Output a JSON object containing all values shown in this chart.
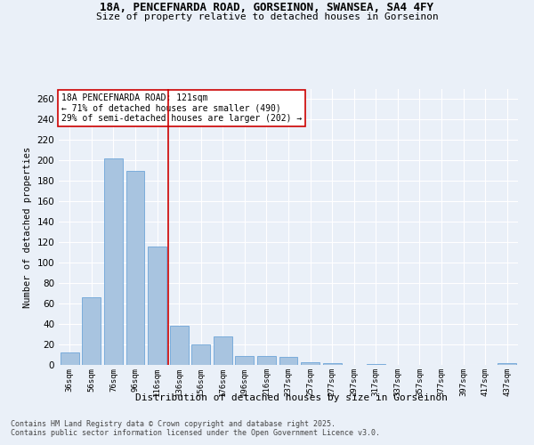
{
  "title_line1": "18A, PENCEFNARDA ROAD, GORSEINON, SWANSEA, SA4 4FY",
  "title_line2": "Size of property relative to detached houses in Gorseinon",
  "xlabel": "Distribution of detached houses by size in Gorseinon",
  "ylabel": "Number of detached properties",
  "categories": [
    "36sqm",
    "56sqm",
    "76sqm",
    "96sqm",
    "116sqm",
    "136sqm",
    "156sqm",
    "176sqm",
    "196sqm",
    "216sqm",
    "237sqm",
    "257sqm",
    "277sqm",
    "297sqm",
    "317sqm",
    "337sqm",
    "357sqm",
    "377sqm",
    "397sqm",
    "417sqm",
    "437sqm"
  ],
  "values": [
    12,
    66,
    202,
    190,
    116,
    38,
    20,
    28,
    9,
    9,
    8,
    3,
    2,
    0,
    1,
    0,
    0,
    0,
    0,
    0,
    2
  ],
  "bar_color": "#a8c4e0",
  "bar_edgecolor": "#5b9bd5",
  "vline_x": 4.5,
  "vline_color": "#cc0000",
  "annotation_text": "18A PENCEFNARDA ROAD: 121sqm\n← 71% of detached houses are smaller (490)\n29% of semi-detached houses are larger (202) →",
  "annotation_box_color": "#ffffff",
  "annotation_box_edgecolor": "#cc0000",
  "ylim": [
    0,
    270
  ],
  "yticks": [
    0,
    20,
    40,
    60,
    80,
    100,
    120,
    140,
    160,
    180,
    200,
    220,
    240,
    260
  ],
  "bg_color": "#eaf0f8",
  "grid_color": "#ffffff",
  "footer_line1": "Contains HM Land Registry data © Crown copyright and database right 2025.",
  "footer_line2": "Contains public sector information licensed under the Open Government Licence v3.0."
}
